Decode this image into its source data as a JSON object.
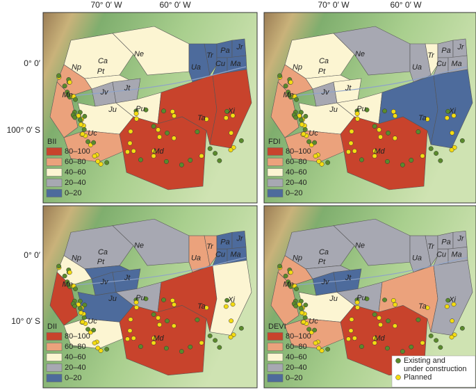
{
  "coordinates": {
    "top": [
      "70° 0′ W",
      "60° 0′ W"
    ],
    "left_top": [
      "0° 0′",
      "100° 0′ S"
    ],
    "left_bottom": [
      "0° 0′",
      "10° 0′ S"
    ]
  },
  "legend_classes": [
    {
      "label": "80–100",
      "color": "#c8432c"
    },
    {
      "label": "60–80",
      "color": "#eba27c"
    },
    {
      "label": "40–60",
      "color": "#fcf5d2"
    },
    {
      "label": "20–40",
      "color": "#a7a8b2"
    },
    {
      "label": "0–20",
      "color": "#4d6b9c"
    }
  ],
  "panels": [
    {
      "title": "BII",
      "basins": [
        {
          "label": "Ne",
          "class": "40–60"
        },
        {
          "label": "Ca",
          "class": "40–60"
        },
        {
          "label": "Np",
          "class": "60–80"
        },
        {
          "label": "Pt",
          "class": "40–60"
        },
        {
          "label": "Ua",
          "class": "0–20"
        },
        {
          "label": "Tr",
          "class": "0–20"
        },
        {
          "label": "Pa",
          "class": "0–20"
        },
        {
          "label": "Jr",
          "class": "0–20"
        },
        {
          "label": "Cu",
          "class": "0–20"
        },
        {
          "label": "Ma",
          "class": "0–20"
        },
        {
          "label": "Mn",
          "class": "60–80"
        },
        {
          "label": "Jv",
          "class": "20–40"
        },
        {
          "label": "Jt",
          "class": "20–40"
        },
        {
          "label": "Ju",
          "class": "40–60"
        },
        {
          "label": "Pu",
          "class": "40–60"
        },
        {
          "label": "Ta",
          "class": "80–100"
        },
        {
          "label": "Xi",
          "class": "80–100"
        },
        {
          "label": "Uc",
          "class": "60–80"
        },
        {
          "label": "Md",
          "class": "80–100"
        }
      ]
    },
    {
      "title": "FDI",
      "basins": [
        {
          "label": "Ne",
          "class": "20–40"
        },
        {
          "label": "Ca",
          "class": "40–60"
        },
        {
          "label": "Np",
          "class": "60–80"
        },
        {
          "label": "Pt",
          "class": "40–60"
        },
        {
          "label": "Ua",
          "class": "20–40"
        },
        {
          "label": "Tr",
          "class": "40–60"
        },
        {
          "label": "Pa",
          "class": "20–40"
        },
        {
          "label": "Jr",
          "class": "20–40"
        },
        {
          "label": "Cu",
          "class": "20–40"
        },
        {
          "label": "Ma",
          "class": "20–40"
        },
        {
          "label": "Mn",
          "class": "60–80"
        },
        {
          "label": "Jv",
          "class": "20–40"
        },
        {
          "label": "Jt",
          "class": "40–60"
        },
        {
          "label": "Ju",
          "class": "40–60"
        },
        {
          "label": "Pu",
          "class": "40–60"
        },
        {
          "label": "Ta",
          "class": "0–20"
        },
        {
          "label": "Xi",
          "class": "0–20"
        },
        {
          "label": "Uc",
          "class": "60–80"
        },
        {
          "label": "Md",
          "class": "80–100"
        }
      ]
    },
    {
      "title": "DII",
      "basins": [
        {
          "label": "Ne",
          "class": "20–40"
        },
        {
          "label": "Ca",
          "class": "20–40"
        },
        {
          "label": "Np",
          "class": "40–60"
        },
        {
          "label": "Pt",
          "class": "0–20"
        },
        {
          "label": "Ua",
          "class": "60–80"
        },
        {
          "label": "Tr",
          "class": "60–80"
        },
        {
          "label": "Pa",
          "class": "0–20"
        },
        {
          "label": "Jr",
          "class": "0–20"
        },
        {
          "label": "Cu",
          "class": "0–20"
        },
        {
          "label": "Ma",
          "class": "0–20"
        },
        {
          "label": "Mn",
          "class": "80–100"
        },
        {
          "label": "Jv",
          "class": "0–20"
        },
        {
          "label": "Jt",
          "class": "0–20"
        },
        {
          "label": "Ju",
          "class": "0–20"
        },
        {
          "label": "Pu",
          "class": "20–40"
        },
        {
          "label": "Ta",
          "class": "80–100"
        },
        {
          "label": "Xi",
          "class": "40–60"
        },
        {
          "label": "Uc",
          "class": "40–60"
        },
        {
          "label": "Md",
          "class": "80–100"
        }
      ]
    },
    {
      "title": "DEVI",
      "basins": [
        {
          "label": "Ne",
          "class": "20–40"
        },
        {
          "label": "Ca",
          "class": "20–40"
        },
        {
          "label": "Np",
          "class": "60–80"
        },
        {
          "label": "Pt",
          "class": "20–40"
        },
        {
          "label": "Ua",
          "class": "20–40"
        },
        {
          "label": "Tr",
          "class": "20–40"
        },
        {
          "label": "Pa",
          "class": "20–40"
        },
        {
          "label": "Jr",
          "class": "20–40"
        },
        {
          "label": "Cu",
          "class": "20–40"
        },
        {
          "label": "Ma",
          "class": "20–40"
        },
        {
          "label": "Mn",
          "class": "60–80"
        },
        {
          "label": "Jv",
          "class": "0–20"
        },
        {
          "label": "Jt",
          "class": "0–20"
        },
        {
          "label": "Ju",
          "class": "40–60"
        },
        {
          "label": "Pu",
          "class": "20–40"
        },
        {
          "label": "Ta",
          "class": "60–80"
        },
        {
          "label": "Xi",
          "class": "20–40"
        },
        {
          "label": "Uc",
          "class": "60–80"
        },
        {
          "label": "Md",
          "class": "80–100"
        }
      ],
      "dam_legend": [
        {
          "lines": [
            "Existing and",
            "under construction"
          ],
          "color": "#5a8a2c"
        },
        {
          "lines": [
            "Planned"
          ],
          "color": "#f4dc12"
        }
      ]
    }
  ]
}
